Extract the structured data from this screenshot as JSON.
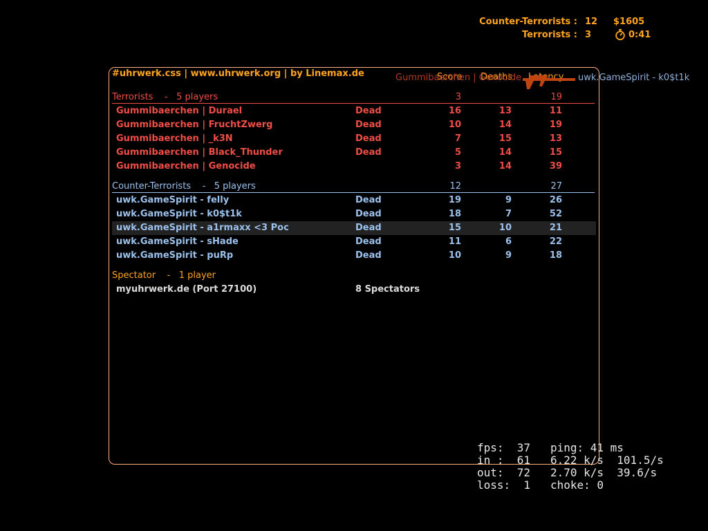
{
  "hud": {
    "ct_label": "Counter-Terrorists :",
    "ct_score": "12",
    "money": "$1605",
    "t_label": "Terrorists :",
    "t_score": "3",
    "timer": "0:41",
    "timer_icon": "stopwatch-icon"
  },
  "killfeed": {
    "killer": "Gummibaerchen | Genocide",
    "weapon_icon": "sniper-rifle-icon",
    "victim": "uwk.GameSpirit - k0$t1k"
  },
  "scoreboard": {
    "title": "#uhrwerk.css | www.uhrwerk.org | by Linemax.de",
    "columns": {
      "score": "Score",
      "deaths": "Deaths",
      "latency": "Latency"
    },
    "terrorists": {
      "name": "Terrorists",
      "sep": "-",
      "count": "5 players",
      "score": "3",
      "latency": "19",
      "players": [
        {
          "name": "Gummibaerchen | Durael",
          "status": "Dead",
          "score": "16",
          "deaths": "13",
          "latency": "11"
        },
        {
          "name": "Gummibaerchen | FruchtZwerg",
          "status": "Dead",
          "score": "10",
          "deaths": "14",
          "latency": "19"
        },
        {
          "name": "Gummibaerchen | _k3N",
          "status": "Dead",
          "score": "7",
          "deaths": "15",
          "latency": "13"
        },
        {
          "name": "Gummibaerchen | Black_Thunder",
          "status": "Dead",
          "score": "5",
          "deaths": "14",
          "latency": "15"
        },
        {
          "name": "Gummibaerchen | Genocide",
          "status": "",
          "score": "3",
          "deaths": "14",
          "latency": "39"
        }
      ]
    },
    "counter_terrorists": {
      "name": "Counter-Terrorists",
      "sep": "-",
      "count": "5 players",
      "score": "12",
      "latency": "27",
      "players": [
        {
          "name": "uwk.GameSpirit - felly",
          "status": "Dead",
          "score": "19",
          "deaths": "9",
          "latency": "26"
        },
        {
          "name": "uwk.GameSpirit - k0$t1k",
          "status": "Dead",
          "score": "18",
          "deaths": "7",
          "latency": "52"
        },
        {
          "name": "uwk.GameSpirit - a1rmaxx <3 Poc",
          "status": "Dead",
          "score": "15",
          "deaths": "10",
          "latency": "21"
        },
        {
          "name": "uwk.GameSpirit - sHade",
          "status": "Dead",
          "score": "11",
          "deaths": "6",
          "latency": "22"
        },
        {
          "name": "uwk.GameSpirit - puRp",
          "status": "Dead",
          "score": "10",
          "deaths": "9",
          "latency": "18"
        }
      ]
    },
    "spectator": {
      "name": "Spectator",
      "sep": "-",
      "count": "1 player",
      "players": [
        {
          "name": "myuhrwerk.de (Port 27100)",
          "status": "8 Spectators"
        }
      ]
    }
  },
  "netgraph": {
    "line1": "fps:  37   ping: 41 ms",
    "line2": "in :  61   6.22 k/s  101.5/s",
    "line3": "out:  72   2.70 k/s  39.6/s",
    "line4": "loss:  1   choke: 0"
  },
  "colors": {
    "orange": "#ffa423",
    "terrorist": "#ef4d46",
    "counter_terrorist": "#9bc1ec",
    "board_border": "#ffb07c"
  }
}
